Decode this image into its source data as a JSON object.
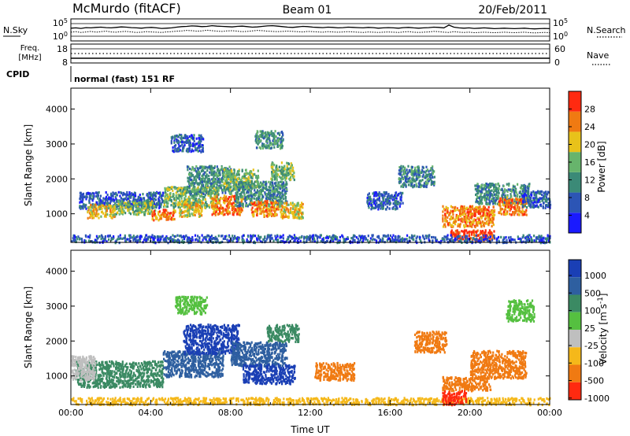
{
  "header": {
    "station": "McMurdo (fitACF)",
    "beam": "Beam 01",
    "date": "20/Feb/2011"
  },
  "noise_panel": {
    "left_label": "N.Sky",
    "right_label": "N.Search",
    "left_ticks": [
      "10^5",
      "10^0"
    ],
    "right_ticks": [
      "10^5",
      "10^0"
    ],
    "sky_trace": [
      3.2,
      3.3,
      3.1,
      3.4,
      3.3,
      3.5,
      3.6,
      3.4,
      3.3,
      3.5,
      3.7,
      3.6,
      3.4,
      3.3,
      3.2,
      3.4,
      3.5,
      3.3,
      3.1,
      3.2,
      3.3,
      3.6,
      3.8,
      3.9,
      4.1,
      4.0,
      3.8,
      3.9,
      4.2,
      4.0,
      3.9,
      3.8,
      3.7,
      3.9,
      4.0,
      3.8,
      3.6,
      3.7,
      3.9,
      4.1,
      4.2,
      4.0,
      3.8,
      3.6,
      3.5,
      3.7,
      3.9,
      3.8,
      3.6,
      3.5,
      3.4,
      3.6,
      3.5,
      3.3,
      3.4,
      3.6,
      3.5,
      3.4,
      3.3,
      3.5,
      3.4,
      3.2,
      3.3,
      3.4,
      3.3,
      3.2,
      3.4,
      3.5,
      3.3,
      3.2,
      3.3,
      3.4,
      3.6,
      3.5,
      3.3,
      4.4,
      3.6,
      3.3,
      3.2,
      3.3,
      3.1,
      3.2,
      3.3,
      3.2,
      3.0,
      3.1,
      3.2,
      3.1,
      3.0,
      3.1,
      3.2,
      3.0,
      2.9,
      3.0,
      3.1,
      3.0
    ],
    "search_trace": [
      1.6,
      1.8,
      1.5,
      1.7,
      1.9,
      1.6,
      1.8,
      2.0,
      1.7,
      1.6,
      1.8,
      1.9,
      1.7,
      1.5,
      1.6,
      1.8,
      1.7,
      1.6,
      1.5,
      1.7,
      1.8,
      2.0,
      2.1,
      2.3,
      2.2,
      2.0,
      2.1,
      2.4,
      2.2,
      2.0,
      1.9,
      2.1,
      2.2,
      2.0,
      1.8,
      1.9,
      2.1,
      2.3,
      2.2,
      2.0,
      1.9,
      1.8,
      1.9,
      2.0,
      1.9,
      1.8,
      1.7,
      1.9,
      1.8,
      1.7,
      1.6,
      1.8,
      1.7,
      1.6,
      1.7,
      1.8,
      1.7,
      1.6,
      1.5,
      1.7,
      1.6,
      1.5,
      1.6,
      1.7,
      1.6,
      1.5,
      1.7,
      1.8,
      1.6,
      1.5,
      1.6,
      1.7,
      1.9,
      1.8,
      1.6,
      1.5,
      1.8,
      1.6,
      1.5,
      1.6,
      1.4,
      1.5,
      1.6,
      1.5,
      1.4,
      1.5,
      1.6,
      1.5,
      1.4,
      1.5,
      1.6,
      1.4,
      1.3,
      1.4,
      1.5,
      1.4
    ]
  },
  "freq_panel": {
    "left_label": "Freq.",
    "left_unit": "[MHz]",
    "right_label": "Nave",
    "left_ticks": [
      "18",
      "8"
    ],
    "right_ticks": [
      "60",
      "0"
    ],
    "cpid_label": "CPID",
    "cpid_text": "normal (fast) 151 RF"
  },
  "chart_data": [
    {
      "type": "heatmap",
      "name": "power",
      "ylabel": "Slant Range [km]",
      "yticks": [
        "1000",
        "2000",
        "3000",
        "4000"
      ],
      "ylim": [
        180,
        4600
      ],
      "colorbar_label": "Power [dB]",
      "colorbar_ticks": [
        "4",
        "8",
        "12",
        "16",
        "20",
        "24",
        "28"
      ],
      "colorbar_range": [
        0,
        32
      ],
      "colorbar_colors": [
        "#1a1aff",
        "#2c55b5",
        "#3b8a77",
        "#67b46c",
        "#e8c21a",
        "#f07a12",
        "#ff2a10"
      ],
      "blobs": [
        {
          "x": [
            0.4,
            4.6
          ],
          "y": [
            1180,
            1650
          ],
          "v": 8
        },
        {
          "x": [
            0.8,
            2.2
          ],
          "y": [
            900,
            1300
          ],
          "v": 20
        },
        {
          "x": [
            2.2,
            4.2
          ],
          "y": [
            1000,
            1400
          ],
          "v": 18
        },
        {
          "x": [
            4.0,
            5.2
          ],
          "y": [
            850,
            1150
          ],
          "v": 26
        },
        {
          "x": [
            4.6,
            7.4
          ],
          "y": [
            1200,
            1800
          ],
          "v": 14
        },
        {
          "x": [
            5.4,
            6.6
          ],
          "y": [
            950,
            1350
          ],
          "v": 22
        },
        {
          "x": [
            5.8,
            8.0
          ],
          "y": [
            1600,
            2400
          ],
          "v": 12
        },
        {
          "x": [
            7.0,
            8.6
          ],
          "y": [
            1000,
            1550
          ],
          "v": 27
        },
        {
          "x": [
            7.6,
            9.4
          ],
          "y": [
            1700,
            2300
          ],
          "v": 16
        },
        {
          "x": [
            8.2,
            10.8
          ],
          "y": [
            1250,
            1950
          ],
          "v": 12
        },
        {
          "x": [
            9.0,
            10.4
          ],
          "y": [
            950,
            1400
          ],
          "v": 24
        },
        {
          "x": [
            10.0,
            11.2
          ],
          "y": [
            2000,
            2500
          ],
          "v": 14
        },
        {
          "x": [
            5.0,
            6.6
          ],
          "y": [
            2800,
            3300
          ],
          "v": 8
        },
        {
          "x": [
            9.2,
            10.6
          ],
          "y": [
            2900,
            3400
          ],
          "v": 10
        },
        {
          "x": [
            10.4,
            11.6
          ],
          "y": [
            900,
            1350
          ],
          "v": 20
        },
        {
          "x": [
            14.8,
            16.6
          ],
          "y": [
            1150,
            1650
          ],
          "v": 8
        },
        {
          "x": [
            16.4,
            18.2
          ],
          "y": [
            1800,
            2400
          ],
          "v": 10
        },
        {
          "x": [
            19.0,
            21.2
          ],
          "y": [
            250,
            560
          ],
          "v": 30
        },
        {
          "x": [
            18.6,
            21.2
          ],
          "y": [
            650,
            1250
          ],
          "v": 24
        },
        {
          "x": [
            20.2,
            23.0
          ],
          "y": [
            1300,
            1900
          ],
          "v": 12
        },
        {
          "x": [
            21.4,
            22.8
          ],
          "y": [
            1000,
            1500
          ],
          "v": 26
        },
        {
          "x": [
            22.6,
            24.0
          ],
          "y": [
            1200,
            1700
          ],
          "v": 8
        },
        {
          "x": [
            0.0,
            24.0
          ],
          "y": [
            200,
            420
          ],
          "v": 6
        }
      ]
    },
    {
      "type": "heatmap",
      "name": "velocity",
      "ylabel": "Slant Range [km]",
      "yticks": [
        "1000",
        "2000",
        "3000",
        "4000"
      ],
      "ylim": [
        180,
        4600
      ],
      "xticks": [
        "00:00",
        "04:00",
        "08:00",
        "12:00",
        "16:00",
        "20:00",
        "00:00"
      ],
      "xlim": [
        0,
        24
      ],
      "xlabel": "Time UT",
      "colorbar_label": "Velocity [m s^-1]",
      "colorbar_ticks": [
        "1000",
        "500",
        "100",
        "25",
        "-25",
        "-100",
        "-500",
        "-1000"
      ],
      "colorbar_colors": [
        "#1a3fb5",
        "#2e5fa0",
        "#3b8a63",
        "#55c040",
        "#bfbfbf",
        "#f5b81a",
        "#f07a12",
        "#ff2a10"
      ],
      "blobs": [
        {
          "x": [
            0.2,
            4.6
          ],
          "y": [
            700,
            1450
          ],
          "v": 2
        },
        {
          "x": [
            0.0,
            1.2
          ],
          "y": [
            900,
            1600
          ],
          "v": 4
        },
        {
          "x": [
            4.6,
            7.6
          ],
          "y": [
            1000,
            1750
          ],
          "v": 1
        },
        {
          "x": [
            5.6,
            8.4
          ],
          "y": [
            1650,
            2500
          ],
          "v": 0
        },
        {
          "x": [
            8.0,
            10.8
          ],
          "y": [
            1300,
            2000
          ],
          "v": 1
        },
        {
          "x": [
            8.6,
            11.2
          ],
          "y": [
            800,
            1350
          ],
          "v": 0
        },
        {
          "x": [
            9.8,
            11.4
          ],
          "y": [
            2000,
            2500
          ],
          "v": 2
        },
        {
          "x": [
            5.2,
            6.8
          ],
          "y": [
            2800,
            3300
          ],
          "v": 3
        },
        {
          "x": [
            12.2,
            14.2
          ],
          "y": [
            900,
            1400
          ],
          "v": 6
        },
        {
          "x": [
            17.2,
            18.8
          ],
          "y": [
            1700,
            2300
          ],
          "v": 6
        },
        {
          "x": [
            18.6,
            21.0
          ],
          "y": [
            600,
            1000
          ],
          "v": 6
        },
        {
          "x": [
            20.0,
            22.8
          ],
          "y": [
            950,
            1750
          ],
          "v": 6
        },
        {
          "x": [
            21.8,
            23.2
          ],
          "y": [
            2600,
            3200
          ],
          "v": 3
        },
        {
          "x": [
            0.0,
            24.0
          ],
          "y": [
            200,
            400
          ],
          "v": 5
        },
        {
          "x": [
            18.6,
            19.8
          ],
          "y": [
            200,
            600
          ],
          "v": 7
        }
      ]
    }
  ]
}
